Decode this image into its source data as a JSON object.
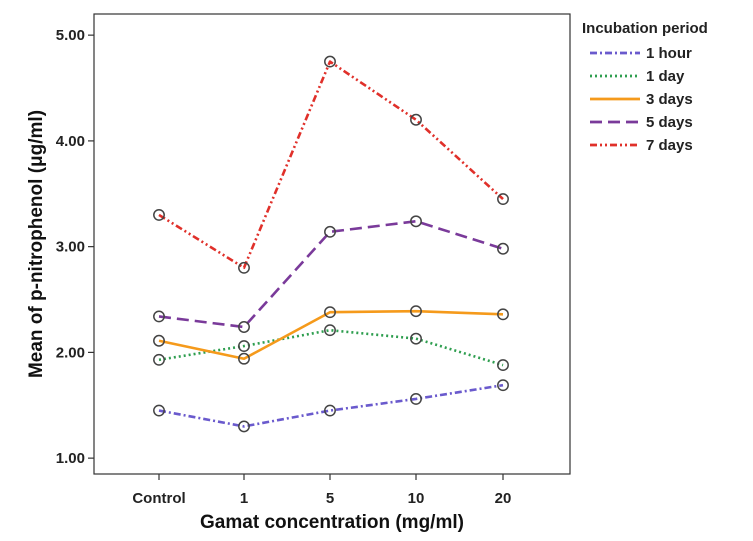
{
  "chart_data": {
    "type": "line",
    "xlabel": "Gamat concentration (mg/ml)",
    "ylabel": "Mean of p-nitrophenol (μg/ml)",
    "categories": [
      "Control",
      "1",
      "5",
      "10",
      "20"
    ],
    "y_ticks": [
      "1.00",
      "2.00",
      "3.00",
      "4.00",
      "5.00"
    ],
    "ylim": [
      0.85,
      5.2
    ],
    "grid": false,
    "legend": {
      "title": "Incubation period",
      "placement": "right"
    },
    "series": [
      {
        "name": "1 hour",
        "values": [
          1.45,
          1.3,
          1.45,
          1.56,
          1.69
        ],
        "color": "#6a5acd",
        "style": "dash-dot"
      },
      {
        "name": "1 day",
        "values": [
          1.93,
          2.06,
          2.21,
          2.13,
          1.88
        ],
        "color": "#2e9e4f",
        "style": "dotted"
      },
      {
        "name": "3 days",
        "values": [
          2.11,
          1.94,
          2.38,
          2.39,
          2.36
        ],
        "color": "#f59a1b",
        "style": "solid"
      },
      {
        "name": "5 days",
        "values": [
          2.34,
          2.24,
          3.14,
          3.24,
          2.98
        ],
        "color": "#7a3a9a",
        "style": "dashed"
      },
      {
        "name": "7 days",
        "values": [
          3.3,
          2.8,
          4.75,
          4.2,
          3.45
        ],
        "color": "#e0302a",
        "style": "dash-dot-dot"
      }
    ]
  }
}
